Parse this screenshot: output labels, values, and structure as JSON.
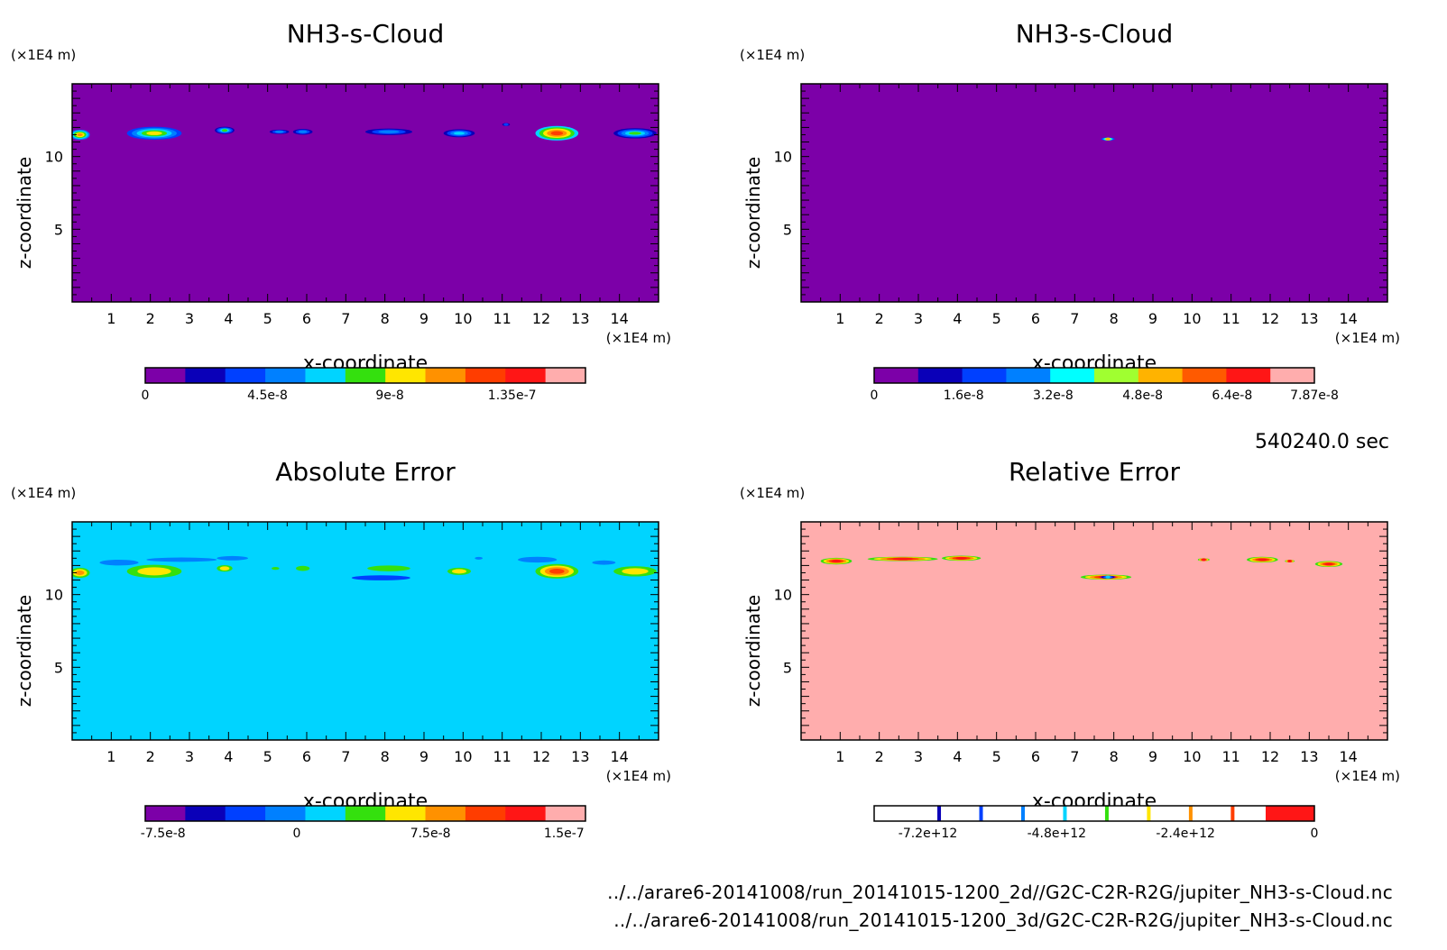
{
  "figure": {
    "timestamp": "540240.0 sec",
    "file_paths": [
      "../../arare6-20141008/run_20141015-1200_2d//G2C-C2R-R2G/jupiter_NH3-s-Cloud.nc",
      "../../arare6-20141008/run_20141015-1200_3d/G2C-C2R-R2G/jupiter_NH3-s-Cloud.nc"
    ]
  },
  "chart_data": [
    {
      "type": "heatmap",
      "title": "NH3-s-Cloud",
      "xlabel": "x-coordinate",
      "ylabel": "z-coordinate",
      "x_unit": "(×1E4 m)",
      "y_unit": "(×1E4 m)",
      "xlim": [
        0,
        15
      ],
      "ylim": [
        0,
        15
      ],
      "x_ticks": [
        1,
        2,
        3,
        4,
        5,
        6,
        7,
        8,
        9,
        10,
        11,
        12,
        13,
        14
      ],
      "y_ticks": [
        5,
        10
      ],
      "background_color": "#7c00a8",
      "colorbar": {
        "range": [
          0,
          1.62e-07
        ],
        "colors": [
          "#7c00a8",
          "#0a00b8",
          "#0040ff",
          "#0080ff",
          "#00d4ff",
          "#34e00e",
          "#ffe600",
          "#ff9100",
          "#ff3d00",
          "#ff1616",
          "#ffadad"
        ],
        "tick_labels": [
          "0",
          "4.5e-8",
          "9e-8",
          "1.35e-7"
        ],
        "tick_values": [
          0,
          4.5e-08,
          9e-08,
          1.35e-07
        ]
      },
      "features": [
        {
          "x": 0.2,
          "z": 11.5,
          "w": 0.5,
          "h": 0.7,
          "level": 7
        },
        {
          "x": 2.1,
          "z": 11.6,
          "w": 1.4,
          "h": 0.9,
          "level": 6
        },
        {
          "x": 3.9,
          "z": 11.8,
          "w": 0.5,
          "h": 0.5,
          "level": 5
        },
        {
          "x": 5.3,
          "z": 11.7,
          "w": 0.5,
          "h": 0.3,
          "level": 3
        },
        {
          "x": 5.9,
          "z": 11.7,
          "w": 0.5,
          "h": 0.4,
          "level": 3
        },
        {
          "x": 8.1,
          "z": 11.7,
          "w": 1.2,
          "h": 0.45,
          "level": 3
        },
        {
          "x": 9.9,
          "z": 11.6,
          "w": 0.8,
          "h": 0.55,
          "level": 4
        },
        {
          "x": 11.1,
          "z": 12.2,
          "w": 0.2,
          "h": 0.2,
          "level": 2
        },
        {
          "x": 12.4,
          "z": 11.6,
          "w": 1.1,
          "h": 1.0,
          "level": 8
        },
        {
          "x": 14.4,
          "z": 11.6,
          "w": 1.1,
          "h": 0.7,
          "level": 5
        }
      ]
    },
    {
      "type": "heatmap",
      "title": "NH3-s-Cloud",
      "xlabel": "x-coordinate",
      "ylabel": "z-coordinate",
      "x_unit": "(×1E4 m)",
      "y_unit": "(×1E4 m)",
      "xlim": [
        0,
        15
      ],
      "ylim": [
        0,
        15
      ],
      "x_ticks": [
        1,
        2,
        3,
        4,
        5,
        6,
        7,
        8,
        9,
        10,
        11,
        12,
        13,
        14
      ],
      "y_ticks": [
        5,
        10
      ],
      "background_color": "#7c00a8",
      "colorbar": {
        "range": [
          0,
          7.87e-08
        ],
        "colors": [
          "#7c00a8",
          "#0a00b8",
          "#0040ff",
          "#0080ff",
          "#00ffff",
          "#a0ff30",
          "#ffb300",
          "#ff5a00",
          "#ff1616",
          "#ffadad"
        ],
        "tick_labels": [
          "0",
          "1.6e-8",
          "3.2e-8",
          "4.8e-8",
          "6.4e-8",
          "7.87e-8"
        ],
        "tick_values": [
          0,
          1.6e-08,
          3.2e-08,
          4.8e-08,
          6.4e-08,
          7.87e-08
        ]
      },
      "features": [
        {
          "x": 7.85,
          "z": 11.2,
          "w": 0.35,
          "h": 0.22,
          "level": 6
        }
      ]
    },
    {
      "type": "heatmap",
      "title": "Absolute Error",
      "xlabel": "x-coordinate",
      "ylabel": "z-coordinate",
      "x_unit": "(×1E4 m)",
      "y_unit": "(×1E4 m)",
      "xlim": [
        0,
        15
      ],
      "ylim": [
        0,
        15
      ],
      "x_ticks": [
        1,
        2,
        3,
        4,
        5,
        6,
        7,
        8,
        9,
        10,
        11,
        12,
        13,
        14
      ],
      "y_ticks": [
        5,
        10
      ],
      "background_color": "#00d4ff",
      "colorbar": {
        "range": [
          -8.5e-08,
          1.62e-07
        ],
        "colors": [
          "#7c00a8",
          "#0a00b8",
          "#0040ff",
          "#0080ff",
          "#00d4ff",
          "#34e00e",
          "#ffe600",
          "#ff9100",
          "#ff3d00",
          "#ff1616",
          "#ffadad"
        ],
        "tick_labels": [
          "-7.5e-8",
          "0",
          "7.5e-8",
          "1.5e-7"
        ],
        "tick_values": [
          -7.5e-08,
          0,
          7.5e-08,
          1.5e-07
        ]
      },
      "features": [
        {
          "x": 1.2,
          "z": 12.2,
          "w": 1.0,
          "h": 0.4,
          "level": 3
        },
        {
          "x": 2.8,
          "z": 12.4,
          "w": 1.8,
          "h": 0.3,
          "level": 3
        },
        {
          "x": 4.1,
          "z": 12.5,
          "w": 0.8,
          "h": 0.3,
          "level": 3
        },
        {
          "x": 0.2,
          "z": 11.5,
          "w": 0.5,
          "h": 0.7,
          "level": 7
        },
        {
          "x": 2.1,
          "z": 11.6,
          "w": 1.4,
          "h": 0.9,
          "level": 6
        },
        {
          "x": 3.9,
          "z": 11.8,
          "w": 0.4,
          "h": 0.45,
          "level": 6
        },
        {
          "x": 5.2,
          "z": 11.8,
          "w": 0.2,
          "h": 0.2,
          "level": 5
        },
        {
          "x": 5.9,
          "z": 11.8,
          "w": 0.35,
          "h": 0.35,
          "level": 5
        },
        {
          "x": 8.1,
          "z": 11.8,
          "w": 1.1,
          "h": 0.4,
          "level": 5
        },
        {
          "x": 7.9,
          "z": 11.15,
          "w": 1.5,
          "h": 0.35,
          "level": 2
        },
        {
          "x": 9.9,
          "z": 11.6,
          "w": 0.6,
          "h": 0.5,
          "level": 6
        },
        {
          "x": 10.4,
          "z": 12.5,
          "w": 0.2,
          "h": 0.15,
          "level": 3
        },
        {
          "x": 11.9,
          "z": 12.4,
          "w": 1.0,
          "h": 0.4,
          "level": 3
        },
        {
          "x": 13.6,
          "z": 12.2,
          "w": 0.6,
          "h": 0.3,
          "level": 3
        },
        {
          "x": 12.4,
          "z": 11.6,
          "w": 1.1,
          "h": 1.0,
          "level": 8
        },
        {
          "x": 14.4,
          "z": 11.6,
          "w": 1.1,
          "h": 0.7,
          "level": 6
        }
      ]
    },
    {
      "type": "heatmap",
      "title": "Relative Error",
      "xlabel": "x-coordinate",
      "ylabel": "z-coordinate",
      "x_unit": "(×1E4 m)",
      "y_unit": "(×1E4 m)",
      "xlim": [
        0,
        15
      ],
      "ylim": [
        0,
        15
      ],
      "x_ticks": [
        1,
        2,
        3,
        4,
        5,
        6,
        7,
        8,
        9,
        10,
        11,
        12,
        13,
        14
      ],
      "y_ticks": [
        5,
        10
      ],
      "background_color": "#ffadad",
      "colorbar": {
        "range": [
          -8200000000000.0,
          0
        ],
        "colors": [
          "#7c00a8",
          "#0a00b8",
          "#0040ff",
          "#0080ff",
          "#00d4ff",
          "#34e00e",
          "#ffe600",
          "#ff9100",
          "#ff3d00",
          "#ff1616"
        ],
        "style": "thin-lines",
        "tick_labels": [
          "-7.2e+12",
          "-4.8e+12",
          "-2.4e+12",
          "0"
        ],
        "tick_values": [
          -7200000000000.0,
          -4800000000000.0,
          -2400000000000.0,
          0
        ]
      },
      "features": [
        {
          "x": 0.9,
          "z": 12.3,
          "w": 0.8,
          "h": 0.45,
          "level": 9
        },
        {
          "x": 2.6,
          "z": 12.45,
          "w": 1.8,
          "h": 0.3,
          "level": 9
        },
        {
          "x": 4.1,
          "z": 12.5,
          "w": 1.0,
          "h": 0.35,
          "level": 9
        },
        {
          "x": 7.8,
          "z": 11.2,
          "w": 1.3,
          "h": 0.35,
          "level": 9
        },
        {
          "x": 7.85,
          "z": 11.2,
          "w": 0.4,
          "h": 0.2,
          "level": 4
        },
        {
          "x": 10.3,
          "z": 12.4,
          "w": 0.3,
          "h": 0.2,
          "level": 9
        },
        {
          "x": 11.8,
          "z": 12.4,
          "w": 0.8,
          "h": 0.4,
          "level": 9
        },
        {
          "x": 12.5,
          "z": 12.3,
          "w": 0.25,
          "h": 0.15,
          "level": 9
        },
        {
          "x": 13.5,
          "z": 12.1,
          "w": 0.7,
          "h": 0.4,
          "level": 9
        }
      ]
    }
  ]
}
